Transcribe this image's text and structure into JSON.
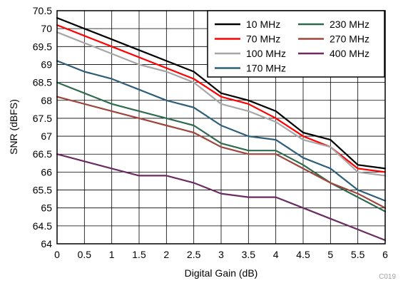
{
  "chart_data": {
    "type": "line",
    "title": "",
    "xlabel": "Digital Gain (dB)",
    "ylabel": "SNR (dBFS)",
    "xlim": [
      0,
      6
    ],
    "ylim": [
      64,
      70.5
    ],
    "xticks": [
      "0",
      "0.5",
      "1",
      "1.5",
      "2",
      "2.5",
      "3",
      "3.5",
      "4",
      "4.5",
      "5",
      "5.5",
      "6"
    ],
    "yticks": [
      "64",
      "64.5",
      "65",
      "65.5",
      "66",
      "66.5",
      "67",
      "67.5",
      "68",
      "68.5",
      "69",
      "69.5",
      "70",
      "70.5"
    ],
    "grid": true,
    "legend_position": "top-right",
    "x": [
      0,
      0.5,
      1,
      1.5,
      2,
      2.5,
      3,
      3.5,
      4,
      4.5,
      5,
      5.5,
      6
    ],
    "series": [
      {
        "name": "10 MHz",
        "color": "#000000",
        "values": [
          70.3,
          70.0,
          69.7,
          69.4,
          69.1,
          68.8,
          68.2,
          68.0,
          67.7,
          67.1,
          66.9,
          66.2,
          66.1
        ]
      },
      {
        "name": "70 MHz",
        "color": "#ff0000",
        "values": [
          70.1,
          69.8,
          69.5,
          69.2,
          68.9,
          68.6,
          68.1,
          67.9,
          67.5,
          67.0,
          66.7,
          66.1,
          66.0
        ]
      },
      {
        "name": "100 MHz",
        "color": "#a6a6a6",
        "values": [
          69.9,
          69.6,
          69.3,
          69.0,
          68.8,
          68.5,
          67.9,
          67.7,
          67.4,
          66.9,
          66.7,
          66.0,
          65.9
        ]
      },
      {
        "name": "170 MHz",
        "color": "#2e5e7a",
        "values": [
          69.1,
          68.8,
          68.6,
          68.3,
          68.0,
          67.8,
          67.3,
          67.0,
          66.9,
          66.4,
          66.1,
          65.5,
          65.2
        ]
      },
      {
        "name": "230 MHz",
        "color": "#2e6b4f",
        "values": [
          68.5,
          68.2,
          67.9,
          67.7,
          67.5,
          67.3,
          66.8,
          66.6,
          66.6,
          66.2,
          65.7,
          65.3,
          64.9
        ]
      },
      {
        "name": "270 MHz",
        "color": "#a0453b",
        "values": [
          68.1,
          67.9,
          67.7,
          67.5,
          67.3,
          67.1,
          66.7,
          66.5,
          66.5,
          66.1,
          65.7,
          65.4,
          65.0
        ]
      },
      {
        "name": "400 MHz",
        "color": "#6a2c63",
        "values": [
          66.5,
          66.3,
          66.1,
          65.9,
          65.9,
          65.7,
          65.4,
          65.3,
          65.3,
          65.0,
          64.7,
          64.4,
          64.1
        ]
      }
    ]
  },
  "figure_id": "C019"
}
